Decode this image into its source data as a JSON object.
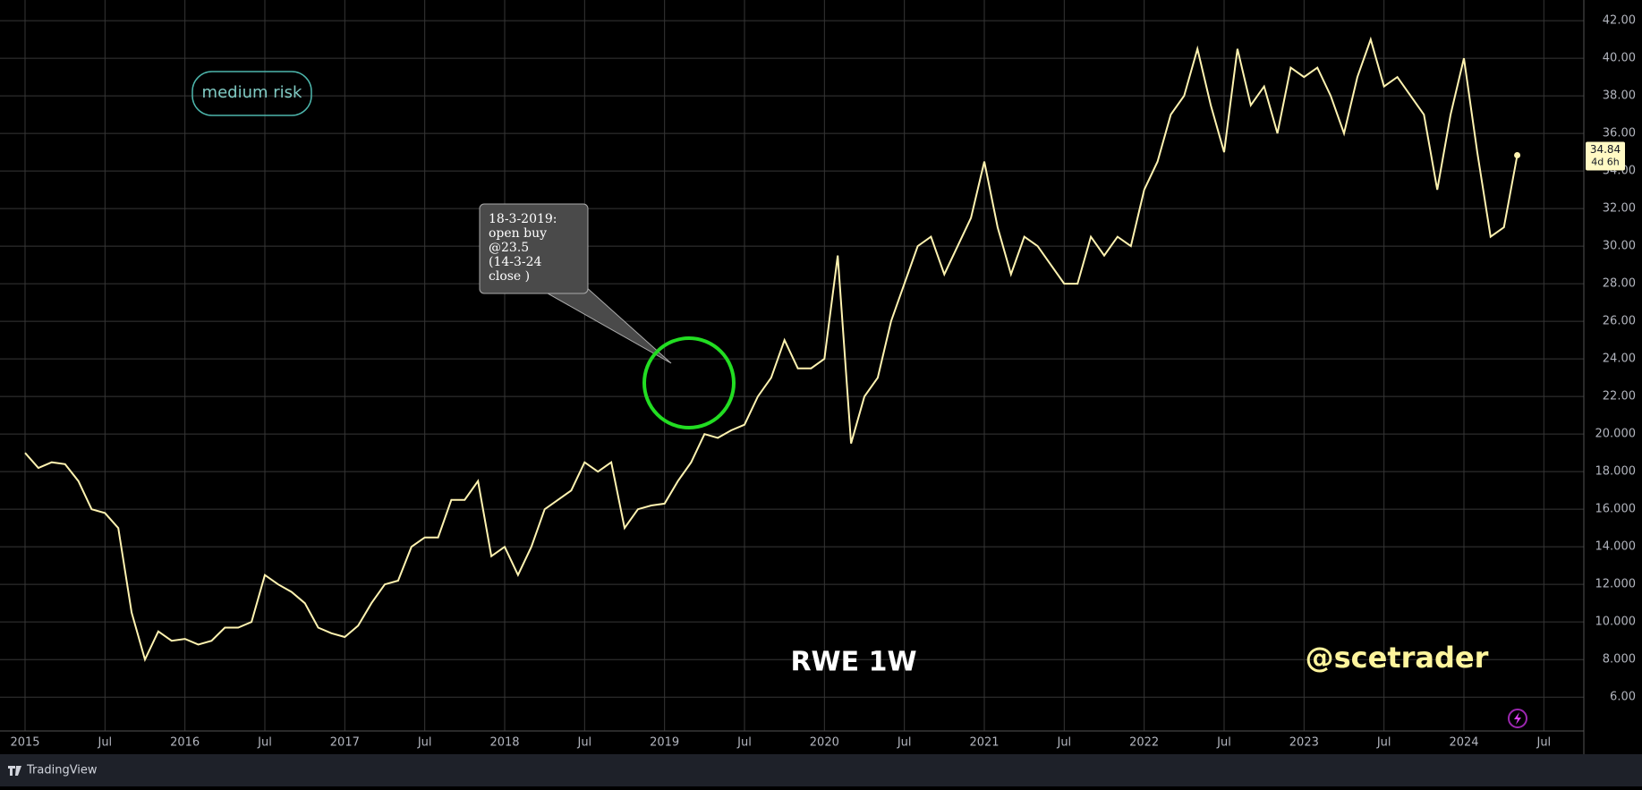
{
  "chart_data": {
    "type": "line",
    "title": "RWE 1W",
    "watermark": "@scetrader",
    "badge": "medium risk",
    "annotation": [
      "18-3-2019:",
      "open buy",
      "@23.5",
      "(14-3-24",
      "close )"
    ],
    "countdown": "4d 6h",
    "brand": "TradingView",
    "color": "#fff3b0",
    "grid": true,
    "x": [
      "2015-01",
      "2015-02",
      "2015-03",
      "2015-04",
      "2015-05",
      "2015-06",
      "2015-07",
      "2015-08",
      "2015-09",
      "2015-10",
      "2015-11",
      "2015-12",
      "2016-01",
      "2016-02",
      "2016-03",
      "2016-04",
      "2016-05",
      "2016-06",
      "2016-07",
      "2016-08",
      "2016-09",
      "2016-10",
      "2016-11",
      "2016-12",
      "2017-01",
      "2017-02",
      "2017-03",
      "2017-04",
      "2017-05",
      "2017-06",
      "2017-07",
      "2017-08",
      "2017-09",
      "2017-10",
      "2017-11",
      "2017-12",
      "2018-01",
      "2018-02",
      "2018-03",
      "2018-04",
      "2018-05",
      "2018-06",
      "2018-07",
      "2018-08",
      "2018-09",
      "2018-10",
      "2018-11",
      "2018-12",
      "2019-01",
      "2019-02",
      "2019-03",
      "2019-04",
      "2019-05",
      "2019-06",
      "2019-07",
      "2019-08",
      "2019-09",
      "2019-10",
      "2019-11",
      "2019-12",
      "2020-01",
      "2020-02",
      "2020-03",
      "2020-04",
      "2020-05",
      "2020-06",
      "2020-07",
      "2020-08",
      "2020-09",
      "2020-10",
      "2020-11",
      "2020-12",
      "2021-01",
      "2021-02",
      "2021-03",
      "2021-04",
      "2021-05",
      "2021-06",
      "2021-07",
      "2021-08",
      "2021-09",
      "2021-10",
      "2021-11",
      "2021-12",
      "2022-01",
      "2022-02",
      "2022-03",
      "2022-04",
      "2022-05",
      "2022-06",
      "2022-07",
      "2022-08",
      "2022-09",
      "2022-10",
      "2022-11",
      "2022-12",
      "2023-01",
      "2023-02",
      "2023-03",
      "2023-04",
      "2023-05",
      "2023-06",
      "2023-07",
      "2023-08",
      "2023-09",
      "2023-10",
      "2023-11",
      "2023-12",
      "2024-01",
      "2024-02",
      "2024-03",
      "2024-04",
      "2024-05"
    ],
    "values": [
      19.0,
      18.2,
      18.5,
      18.4,
      17.5,
      16.0,
      15.8,
      15.0,
      10.5,
      8.0,
      9.5,
      9.0,
      9.1,
      8.8,
      9.0,
      9.7,
      9.7,
      10.0,
      12.5,
      12.0,
      11.6,
      11.0,
      9.7,
      9.4,
      9.2,
      9.8,
      11.0,
      12.0,
      12.2,
      14.0,
      14.5,
      14.5,
      16.5,
      16.5,
      17.5,
      13.5,
      14.0,
      12.5,
      14.0,
      16.0,
      16.5,
      17.0,
      18.5,
      18.0,
      18.5,
      15.0,
      16.0,
      16.2,
      16.3,
      17.5,
      18.5,
      20.0,
      19.8,
      20.2,
      20.5,
      22.0,
      23.0,
      25.0,
      23.5,
      23.5,
      24.0,
      29.5,
      19.5,
      22.0,
      23.0,
      26.0,
      28.0,
      30.0,
      30.5,
      28.5,
      30.0,
      31.5,
      34.5,
      31.0,
      28.5,
      30.5,
      30.0,
      29.0,
      28.0,
      28.0,
      30.5,
      29.5,
      30.5,
      30.0,
      33.0,
      34.5,
      37.0,
      38.0,
      40.5,
      37.5,
      35.0,
      40.5,
      37.5,
      38.5,
      36.0,
      39.5,
      39.0,
      39.5,
      38.0,
      36.0,
      39.0,
      41.0,
      38.5,
      39.0,
      38.0,
      37.0,
      33.0,
      37.0,
      40.0,
      35.0,
      30.5,
      31.0,
      34.84
    ],
    "xlim": [
      "2015-01",
      "2024-10"
    ],
    "xticks": [
      {
        "value": "2015-01",
        "label": "2015"
      },
      {
        "value": "2015-07",
        "label": "Jul"
      },
      {
        "value": "2016-01",
        "label": "2016"
      },
      {
        "value": "2016-07",
        "label": "Jul"
      },
      {
        "value": "2017-01",
        "label": "2017"
      },
      {
        "value": "2017-07",
        "label": "Jul"
      },
      {
        "value": "2018-01",
        "label": "2018"
      },
      {
        "value": "2018-07",
        "label": "Jul"
      },
      {
        "value": "2019-01",
        "label": "2019"
      },
      {
        "value": "2019-07",
        "label": "Jul"
      },
      {
        "value": "2020-01",
        "label": "2020"
      },
      {
        "value": "2020-07",
        "label": "Jul"
      },
      {
        "value": "2021-01",
        "label": "2021"
      },
      {
        "value": "2021-07",
        "label": "Jul"
      },
      {
        "value": "2022-01",
        "label": "2022"
      },
      {
        "value": "2022-07",
        "label": "Jul"
      },
      {
        "value": "2023-01",
        "label": "2023"
      },
      {
        "value": "2023-07",
        "label": "Jul"
      },
      {
        "value": "2024-01",
        "label": "2024"
      },
      {
        "value": "2024-07",
        "label": "Jul"
      }
    ],
    "ylim": [
      4.2,
      43.1
    ],
    "yticks": [
      {
        "value": 6,
        "label": "6.00"
      },
      {
        "value": 8,
        "label": "8.000"
      },
      {
        "value": 10,
        "label": "10.000"
      },
      {
        "value": 12,
        "label": "12.000"
      },
      {
        "value": 14,
        "label": "14.000"
      },
      {
        "value": 16,
        "label": "16.000"
      },
      {
        "value": 18,
        "label": "18.000"
      },
      {
        "value": 20,
        "label": "20.000"
      },
      {
        "value": 22,
        "label": "22.00"
      },
      {
        "value": 24,
        "label": "24.00"
      },
      {
        "value": 26,
        "label": "26.00"
      },
      {
        "value": 28,
        "label": "28.00"
      },
      {
        "value": 30,
        "label": "30.00"
      },
      {
        "value": 32,
        "label": "32.00"
      },
      {
        "value": 34,
        "label": "34.00"
      },
      {
        "value": 36,
        "label": "36.00"
      },
      {
        "value": 38,
        "label": "38.00"
      },
      {
        "value": 40,
        "label": "40.00"
      },
      {
        "value": 42,
        "label": "42.00"
      }
    ]
  }
}
